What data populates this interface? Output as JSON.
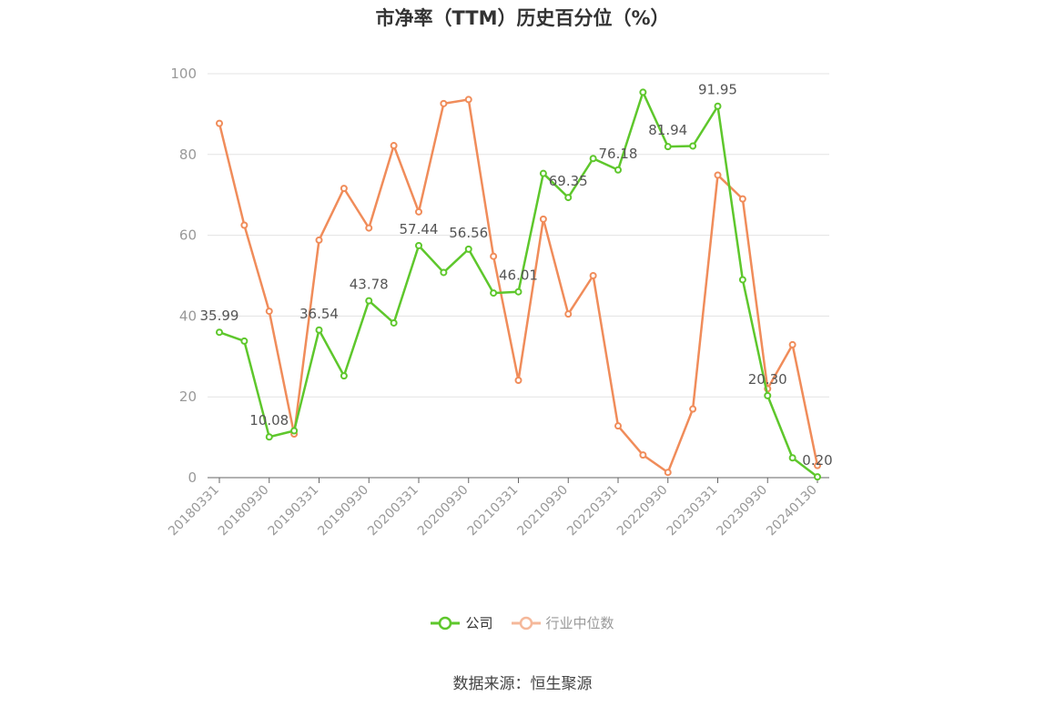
{
  "title": "市净率（TTM）历史百分位（%）",
  "source": "数据来源：恒生聚源",
  "colors": {
    "company": "#5ec72c",
    "industry": "#f08c5a",
    "industry_legend": "#f5b89a"
  },
  "chart_data": {
    "type": "line",
    "title": "市净率（TTM）历史百分位（%）",
    "ylim": [
      0,
      100
    ],
    "yticks": [
      0,
      20,
      40,
      60,
      80,
      100
    ],
    "grid": true,
    "legend_position": "bottom",
    "x": [
      "20180331",
      "20180630",
      "20180930",
      "20181231",
      "20190331",
      "20190630",
      "20190930",
      "20191231",
      "20200331",
      "20200630",
      "20200930",
      "20201231",
      "20210331",
      "20210630",
      "20210930",
      "20211231",
      "20220331",
      "20220630",
      "20220930",
      "20221231",
      "20230331",
      "20230630",
      "20230930",
      "20231231",
      "20240130"
    ],
    "xtick_labels": [
      "20180331",
      "20180930",
      "20190331",
      "20190930",
      "20200331",
      "20200930",
      "20210331",
      "20210930",
      "20220331",
      "20220930",
      "20230331",
      "20230930",
      "20240130"
    ],
    "series": [
      {
        "name": "公司",
        "values": [
          35.99,
          33.8,
          10.08,
          11.6,
          36.54,
          25.2,
          43.78,
          38.3,
          57.44,
          50.8,
          56.56,
          45.7,
          46.01,
          75.3,
          69.35,
          79.0,
          76.18,
          95.4,
          81.94,
          82.1,
          91.95,
          49.0,
          20.3,
          4.9,
          0.2
        ]
      },
      {
        "name": "行业中位数",
        "values": [
          87.7,
          62.5,
          41.2,
          10.8,
          58.8,
          71.6,
          61.8,
          82.2,
          65.8,
          92.6,
          93.6,
          54.8,
          24.1,
          64.0,
          40.5,
          50.0,
          12.8,
          5.6,
          1.3,
          17.0,
          74.9,
          69.0,
          22.0,
          32.9,
          3.0
        ]
      }
    ],
    "data_labels": [
      {
        "index": 0,
        "text": "35.99"
      },
      {
        "index": 2,
        "text": "10.08"
      },
      {
        "index": 4,
        "text": "36.54"
      },
      {
        "index": 6,
        "text": "43.78"
      },
      {
        "index": 8,
        "text": "57.44"
      },
      {
        "index": 10,
        "text": "56.56"
      },
      {
        "index": 12,
        "text": "46.01"
      },
      {
        "index": 14,
        "text": "69.35"
      },
      {
        "index": 16,
        "text": "76.18"
      },
      {
        "index": 18,
        "text": "81.94"
      },
      {
        "index": 20,
        "text": "91.95"
      },
      {
        "index": 22,
        "text": "20.30"
      },
      {
        "index": 24,
        "text": "0.20"
      }
    ]
  }
}
